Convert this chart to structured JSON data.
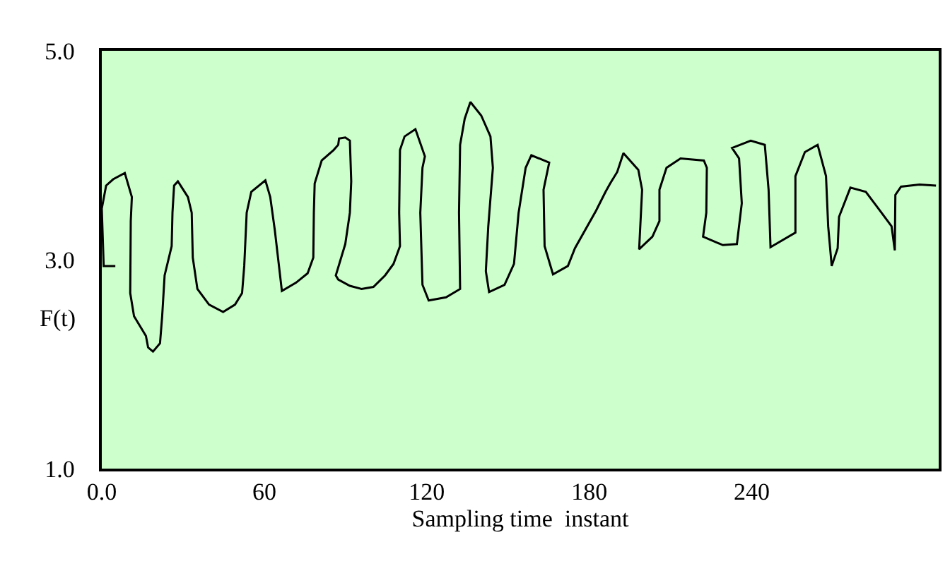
{
  "chart_data": {
    "type": "line",
    "xlabel": "Sampling time  instant",
    "ylabel": "F(t)",
    "xlim": [
      0,
      309
    ],
    "ylim": [
      1.0,
      5.0
    ],
    "xticks": [
      {
        "value": 0,
        "label": "0.0"
      },
      60,
      120,
      180,
      240
    ],
    "yticks": [
      {
        "value": 1,
        "label": "1.0"
      },
      {
        "value": 3,
        "label": "3.0"
      },
      {
        "value": 5,
        "label": "5.0"
      }
    ],
    "grid": false,
    "marker": "none",
    "line_style": "solid",
    "series": [
      {
        "color": "#000000",
        "x": [
          5.0,
          0.7,
          0.0,
          1.6,
          4.2,
          8.5,
          11.1,
          10.7,
          10.5,
          11.9,
          16.3,
          17.1,
          18.9,
          21.5,
          22.3,
          23.2,
          25.8,
          26.1,
          26.7,
          28.1,
          31.8,
          33.2,
          33.6,
          35.3,
          39.6,
          44.8,
          49.2,
          51.8,
          52.6,
          53.5,
          55.2,
          60.4,
          62.2,
          63.9,
          66.5,
          71.7,
          76.0,
          78.1,
          78.3,
          78.6,
          81.2,
          85.6,
          87.3,
          87.6,
          89.9,
          91.6,
          92.1,
          91.6,
          89.9,
          86.4,
          87.3,
          91.6,
          95.9,
          100.3,
          104.6,
          107.7,
          110.1,
          109.8,
          110.1,
          111.8,
          115.8,
          119.3,
          118.4,
          117.6,
          118.4,
          120.7,
          127.1,
          132.3,
          131.9,
          132.3,
          134.0,
          136.1,
          140.1,
          143.5,
          144.4,
          142.7,
          141.8,
          143.0,
          148.7,
          152.2,
          153.9,
          156.5,
          158.6,
          165.2,
          163.1,
          163.5,
          166.6,
          172.1,
          174.7,
          182.5,
          186.0,
          187.7,
          190.3,
          192.6,
          198.1,
          199.5,
          198.4,
          203.3,
          205.9,
          205.9,
          208.5,
          213.7,
          222.3,
          223.4,
          223.2,
          222.0,
          229.3,
          234.5,
          236.3,
          235.3,
          232.7,
          239.6,
          244.8,
          246.2,
          246.9,
          256.1,
          256.1,
          259.6,
          264.3,
          267.4,
          268.2,
          269.5,
          271.7,
          272.2,
          276.4,
          282.1,
          287.3,
          291.6,
          292.8,
          293.0,
          295.1,
          301.9,
          308.0
        ],
        "values": [
          2.94,
          2.94,
          3.49,
          3.71,
          3.77,
          3.83,
          3.6,
          3.37,
          2.68,
          2.46,
          2.27,
          2.16,
          2.12,
          2.2,
          2.46,
          2.85,
          3.13,
          3.45,
          3.71,
          3.75,
          3.6,
          3.45,
          3.02,
          2.72,
          2.57,
          2.5,
          2.57,
          2.68,
          2.94,
          3.45,
          3.65,
          3.76,
          3.6,
          3.28,
          2.7,
          2.78,
          2.87,
          3.02,
          3.45,
          3.73,
          3.95,
          4.05,
          4.1,
          4.16,
          4.17,
          4.14,
          3.75,
          3.45,
          3.15,
          2.85,
          2.81,
          2.75,
          2.72,
          2.74,
          2.85,
          2.96,
          3.13,
          3.45,
          4.05,
          4.18,
          4.25,
          3.99,
          3.88,
          3.45,
          2.76,
          2.61,
          2.64,
          2.72,
          3.45,
          4.1,
          4.35,
          4.51,
          4.38,
          4.18,
          3.88,
          3.32,
          2.89,
          2.69,
          2.76,
          2.96,
          3.45,
          3.88,
          4.0,
          3.93,
          3.67,
          3.13,
          2.86,
          2.94,
          3.11,
          3.47,
          3.65,
          3.73,
          3.84,
          4.02,
          3.86,
          3.67,
          3.1,
          3.22,
          3.37,
          3.67,
          3.88,
          3.97,
          3.95,
          3.88,
          3.45,
          3.22,
          3.14,
          3.15,
          3.54,
          3.97,
          4.07,
          4.14,
          4.1,
          3.67,
          3.12,
          3.26,
          3.8,
          4.03,
          4.1,
          3.8,
          3.32,
          2.94,
          3.11,
          3.41,
          3.69,
          3.65,
          3.47,
          3.32,
          3.09,
          3.62,
          3.7,
          3.72,
          3.71
        ]
      }
    ]
  }
}
